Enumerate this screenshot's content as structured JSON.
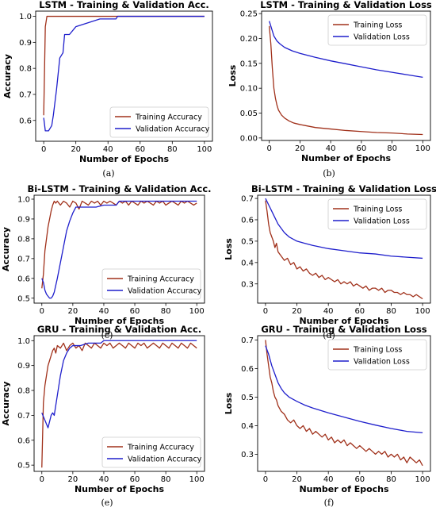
{
  "colors": {
    "training": "#a0301a",
    "validation": "#1f1fcc",
    "frame": "#000000"
  },
  "chart_data": [
    {
      "type": "line",
      "caption": "(a)",
      "title": "LSTM - Training & Validation Acc.",
      "xlabel": "Number of Epochs",
      "ylabel": "Accuracy",
      "xlim": [
        -5,
        105
      ],
      "ylim": [
        0.52,
        1.02
      ],
      "xticks": [
        0,
        20,
        40,
        60,
        80,
        100
      ],
      "yticks": [
        0.6,
        0.7,
        0.8,
        0.9,
        1.0
      ],
      "yticklabels": [
        "0.6",
        "0.7",
        "0.8",
        "0.9",
        "1.0"
      ],
      "legend_position": "lower-right",
      "series": [
        {
          "name": "Training Accuracy",
          "key": "training",
          "x": [
            0,
            1,
            2,
            3,
            100
          ],
          "y": [
            0.62,
            0.96,
            1.0,
            1.0,
            1.0
          ]
        },
        {
          "name": "Validation Accuracy",
          "key": "validation",
          "x": [
            0,
            1,
            3,
            5,
            6,
            8,
            10,
            12,
            13,
            16,
            20,
            25,
            30,
            35,
            40,
            45,
            46,
            100
          ],
          "y": [
            0.61,
            0.56,
            0.56,
            0.58,
            0.62,
            0.72,
            0.84,
            0.86,
            0.93,
            0.93,
            0.96,
            0.97,
            0.98,
            0.99,
            0.99,
            0.99,
            1.0,
            1.0
          ]
        }
      ]
    },
    {
      "type": "line",
      "caption": "(b)",
      "title": "LSTM - Training & Validation Loss",
      "xlabel": "Number of Epochs",
      "ylabel": "Loss",
      "xlim": [
        -5,
        105
      ],
      "ylim": [
        -0.005,
        0.255
      ],
      "xticks": [
        0,
        20,
        40,
        60,
        80,
        100
      ],
      "yticks": [
        0.0,
        0.05,
        0.1,
        0.15,
        0.2,
        0.25
      ],
      "yticklabels": [
        "0.00",
        "0.05",
        "0.10",
        "0.15",
        "0.20",
        "0.25"
      ],
      "legend_position": "top-right",
      "series": [
        {
          "name": "Training Loss",
          "key": "training",
          "x": [
            0,
            1,
            2,
            3,
            4,
            5,
            6,
            8,
            10,
            13,
            16,
            20,
            25,
            30,
            40,
            50,
            60,
            70,
            80,
            90,
            100
          ],
          "y": [
            0.225,
            0.19,
            0.14,
            0.1,
            0.08,
            0.066,
            0.056,
            0.046,
            0.04,
            0.034,
            0.03,
            0.027,
            0.024,
            0.021,
            0.018,
            0.015,
            0.013,
            0.011,
            0.01,
            0.008,
            0.007
          ]
        },
        {
          "name": "Validation Loss",
          "key": "validation",
          "x": [
            0,
            1,
            2,
            3,
            5,
            7,
            10,
            15,
            20,
            30,
            40,
            50,
            60,
            70,
            80,
            90,
            100
          ],
          "y": [
            0.235,
            0.225,
            0.215,
            0.205,
            0.195,
            0.189,
            0.182,
            0.175,
            0.17,
            0.162,
            0.155,
            0.149,
            0.143,
            0.137,
            0.132,
            0.127,
            0.122
          ]
        }
      ]
    },
    {
      "type": "line",
      "caption": "(c)",
      "title": "Bi-LSTM - Training & Validation Acc.",
      "xlabel": "Number of Epochs",
      "ylabel": "Accuracy",
      "xlim": [
        -5,
        105
      ],
      "ylim": [
        0.475,
        1.02
      ],
      "xticks": [
        0,
        20,
        40,
        60,
        80,
        100
      ],
      "yticks": [
        0.5,
        0.6,
        0.7,
        0.8,
        0.9,
        1.0
      ],
      "yticklabels": [
        "0.5",
        "0.6",
        "0.7",
        "0.8",
        "0.9",
        "1.0"
      ],
      "legend_position": "lower-right",
      "series": [
        {
          "name": "Training Accuracy",
          "key": "training",
          "x": [
            0,
            1,
            2,
            3,
            4,
            5,
            6,
            7,
            8,
            9,
            10,
            12,
            14,
            16,
            18,
            20,
            22,
            24,
            26,
            28,
            30,
            32,
            34,
            36,
            38,
            40,
            42,
            44,
            46,
            48,
            50,
            52,
            54,
            56,
            58,
            60,
            62,
            64,
            66,
            68,
            70,
            72,
            74,
            76,
            78,
            80,
            82,
            84,
            86,
            88,
            90,
            92,
            94,
            96,
            98,
            100
          ],
          "y": [
            0.55,
            0.62,
            0.74,
            0.8,
            0.86,
            0.9,
            0.94,
            0.97,
            0.99,
            0.98,
            0.99,
            0.97,
            0.99,
            0.98,
            0.96,
            0.99,
            0.98,
            0.95,
            0.99,
            0.98,
            0.97,
            0.99,
            0.98,
            0.99,
            0.97,
            0.99,
            0.98,
            0.99,
            0.98,
            0.97,
            0.99,
            0.98,
            0.99,
            0.97,
            0.99,
            0.98,
            0.97,
            0.99,
            0.98,
            0.99,
            0.98,
            0.97,
            0.99,
            0.98,
            0.99,
            0.97,
            0.98,
            0.99,
            0.98,
            0.97,
            0.99,
            0.98,
            0.99,
            0.98,
            0.97,
            0.98
          ]
        },
        {
          "name": "Validation Accuracy",
          "key": "validation",
          "x": [
            0,
            1,
            2,
            3,
            4,
            5,
            6,
            7,
            8,
            10,
            12,
            14,
            16,
            18,
            20,
            22,
            25,
            30,
            35,
            40,
            45,
            48,
            50,
            60,
            70,
            80,
            90,
            100
          ],
          "y": [
            0.6,
            0.58,
            0.54,
            0.52,
            0.51,
            0.5,
            0.5,
            0.51,
            0.53,
            0.6,
            0.68,
            0.76,
            0.84,
            0.89,
            0.93,
            0.96,
            0.96,
            0.96,
            0.96,
            0.97,
            0.97,
            0.97,
            0.99,
            0.99,
            0.99,
            0.99,
            0.99,
            0.99
          ]
        }
      ]
    },
    {
      "type": "line",
      "caption": "(d)",
      "title": "Bi-LSTM - Training & Validation Loss",
      "xlabel": "Number of Epochs",
      "ylabel": "Loss",
      "xlim": [
        -5,
        105
      ],
      "ylim": [
        0.21,
        0.715
      ],
      "xticks": [
        0,
        20,
        40,
        60,
        80,
        100
      ],
      "yticks": [
        0.3,
        0.4,
        0.5,
        0.6,
        0.7
      ],
      "yticklabels": [
        "0.3",
        "0.4",
        "0.5",
        "0.6",
        "0.7"
      ],
      "legend_position": "top-right",
      "series": [
        {
          "name": "Training Loss",
          "key": "training",
          "x": [
            0,
            1,
            2,
            3,
            4,
            5,
            6,
            7,
            8,
            9,
            10,
            12,
            14,
            16,
            18,
            20,
            22,
            24,
            26,
            28,
            30,
            32,
            34,
            36,
            38,
            40,
            42,
            44,
            46,
            48,
            50,
            52,
            54,
            56,
            58,
            60,
            62,
            64,
            66,
            68,
            70,
            72,
            74,
            76,
            78,
            80,
            82,
            84,
            86,
            88,
            90,
            92,
            94,
            96,
            98,
            100
          ],
          "y": [
            0.69,
            0.64,
            0.58,
            0.54,
            0.52,
            0.5,
            0.47,
            0.49,
            0.45,
            0.44,
            0.43,
            0.41,
            0.42,
            0.39,
            0.4,
            0.37,
            0.38,
            0.36,
            0.37,
            0.35,
            0.34,
            0.35,
            0.33,
            0.34,
            0.32,
            0.33,
            0.32,
            0.31,
            0.32,
            0.3,
            0.31,
            0.3,
            0.31,
            0.29,
            0.3,
            0.29,
            0.28,
            0.29,
            0.27,
            0.28,
            0.28,
            0.27,
            0.28,
            0.26,
            0.27,
            0.27,
            0.26,
            0.26,
            0.25,
            0.26,
            0.25,
            0.25,
            0.24,
            0.25,
            0.24,
            0.23
          ]
        },
        {
          "name": "Validation Loss",
          "key": "validation",
          "x": [
            0,
            2,
            4,
            6,
            8,
            10,
            12,
            15,
            20,
            25,
            30,
            40,
            50,
            60,
            70,
            80,
            90,
            100
          ],
          "y": [
            0.7,
            0.67,
            0.64,
            0.61,
            0.58,
            0.56,
            0.54,
            0.52,
            0.5,
            0.49,
            0.48,
            0.465,
            0.455,
            0.445,
            0.44,
            0.43,
            0.425,
            0.42
          ]
        }
      ]
    },
    {
      "type": "line",
      "caption": "(e)",
      "title": "GRU - Training & Validation Acc.",
      "xlabel": "Number of Epochs",
      "ylabel": "Accuracy",
      "xlim": [
        -5,
        105
      ],
      "ylim": [
        0.475,
        1.02
      ],
      "xticks": [
        0,
        20,
        40,
        60,
        80,
        100
      ],
      "yticks": [
        0.5,
        0.6,
        0.7,
        0.8,
        0.9,
        1.0
      ],
      "yticklabels": [
        "0.5",
        "0.6",
        "0.7",
        "0.8",
        "0.9",
        "1.0"
      ],
      "legend_position": "lower-right",
      "series": [
        {
          "name": "Training Accuracy",
          "key": "training",
          "x": [
            0,
            1,
            2,
            3,
            4,
            5,
            6,
            7,
            8,
            9,
            10,
            12,
            14,
            16,
            18,
            20,
            22,
            24,
            26,
            28,
            30,
            32,
            34,
            36,
            38,
            40,
            42,
            44,
            46,
            48,
            50,
            52,
            54,
            56,
            58,
            60,
            62,
            64,
            66,
            68,
            70,
            72,
            74,
            76,
            78,
            80,
            82,
            84,
            86,
            88,
            90,
            92,
            94,
            96,
            98,
            100
          ],
          "y": [
            0.49,
            0.75,
            0.82,
            0.86,
            0.9,
            0.92,
            0.94,
            0.96,
            0.97,
            0.95,
            0.98,
            0.97,
            0.99,
            0.96,
            0.98,
            0.99,
            0.97,
            0.98,
            0.96,
            0.99,
            0.98,
            0.97,
            0.99,
            0.98,
            0.97,
            0.99,
            0.98,
            0.99,
            0.97,
            0.98,
            0.99,
            0.98,
            0.97,
            0.99,
            0.98,
            0.97,
            0.99,
            0.98,
            0.99,
            0.97,
            0.98,
            0.99,
            0.98,
            0.97,
            0.99,
            0.98,
            0.97,
            0.99,
            0.98,
            0.97,
            0.99,
            0.98,
            0.97,
            0.99,
            0.98,
            0.97
          ]
        },
        {
          "name": "Validation Accuracy",
          "key": "validation",
          "x": [
            0,
            2,
            4,
            6,
            7,
            8,
            10,
            12,
            14,
            16,
            18,
            20,
            25,
            30,
            35,
            38,
            40,
            50,
            60,
            70,
            80,
            90,
            100
          ],
          "y": [
            0.71,
            0.68,
            0.65,
            0.7,
            0.71,
            0.7,
            0.78,
            0.86,
            0.92,
            0.95,
            0.97,
            0.98,
            0.98,
            0.99,
            0.99,
            0.99,
            1.0,
            1.0,
            1.0,
            1.0,
            1.0,
            1.0,
            1.0
          ]
        }
      ]
    },
    {
      "type": "line",
      "caption": "(f)",
      "title": "GRU - Training & Validation Loss",
      "xlabel": "Number of Epochs",
      "ylabel": "Loss",
      "xlim": [
        -5,
        105
      ],
      "ylim": [
        0.24,
        0.715
      ],
      "xticks": [
        0,
        20,
        40,
        60,
        80,
        100
      ],
      "yticks": [
        0.3,
        0.4,
        0.5,
        0.6,
        0.7
      ],
      "yticklabels": [
        "0.3",
        "0.4",
        "0.5",
        "0.6",
        "0.7"
      ],
      "legend_position": "top-right",
      "series": [
        {
          "name": "Training Loss",
          "key": "training",
          "x": [
            0,
            1,
            2,
            3,
            4,
            5,
            6,
            7,
            8,
            9,
            10,
            12,
            14,
            16,
            18,
            20,
            22,
            24,
            26,
            28,
            30,
            32,
            34,
            36,
            38,
            40,
            42,
            44,
            46,
            48,
            50,
            52,
            54,
            56,
            58,
            60,
            62,
            64,
            66,
            68,
            70,
            72,
            74,
            76,
            78,
            80,
            82,
            84,
            86,
            88,
            90,
            92,
            94,
            96,
            98,
            100
          ],
          "y": [
            0.7,
            0.65,
            0.61,
            0.57,
            0.55,
            0.52,
            0.5,
            0.49,
            0.47,
            0.46,
            0.45,
            0.44,
            0.42,
            0.41,
            0.42,
            0.4,
            0.39,
            0.4,
            0.38,
            0.39,
            0.37,
            0.38,
            0.37,
            0.36,
            0.37,
            0.35,
            0.36,
            0.34,
            0.35,
            0.34,
            0.35,
            0.33,
            0.34,
            0.33,
            0.32,
            0.33,
            0.32,
            0.31,
            0.32,
            0.31,
            0.3,
            0.31,
            0.3,
            0.31,
            0.29,
            0.3,
            0.29,
            0.3,
            0.28,
            0.29,
            0.27,
            0.29,
            0.28,
            0.27,
            0.28,
            0.26
          ]
        },
        {
          "name": "Validation Loss",
          "key": "validation",
          "x": [
            0,
            2,
            4,
            6,
            8,
            10,
            12,
            15,
            20,
            25,
            30,
            40,
            50,
            60,
            70,
            80,
            90,
            100
          ],
          "y": [
            0.68,
            0.65,
            0.61,
            0.58,
            0.55,
            0.53,
            0.515,
            0.5,
            0.485,
            0.472,
            0.462,
            0.445,
            0.43,
            0.415,
            0.402,
            0.39,
            0.38,
            0.375
          ]
        }
      ]
    }
  ]
}
